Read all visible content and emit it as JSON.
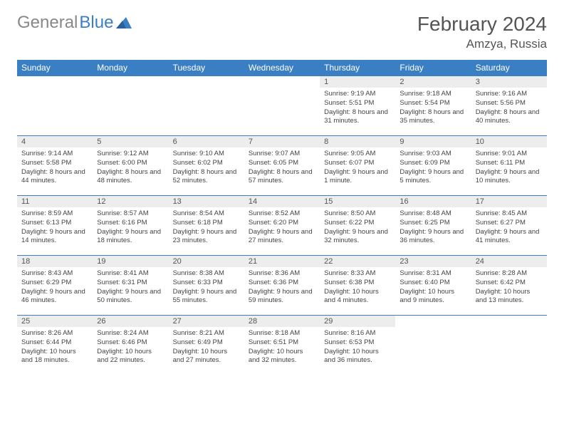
{
  "logo": {
    "gray": "General",
    "blue": "Blue"
  },
  "title": "February 2024",
  "subtitle": "Amzya, Russia",
  "colors": {
    "header_bg": "#3a7fc4",
    "daynum_bg": "#ededed",
    "border": "#3a7fc4",
    "text": "#444"
  },
  "weekdays": [
    "Sunday",
    "Monday",
    "Tuesday",
    "Wednesday",
    "Thursday",
    "Friday",
    "Saturday"
  ],
  "weeks": [
    [
      null,
      null,
      null,
      null,
      {
        "num": "1",
        "sunrise": "Sunrise: 9:19 AM",
        "sunset": "Sunset: 5:51 PM",
        "daylight": "Daylight: 8 hours and 31 minutes."
      },
      {
        "num": "2",
        "sunrise": "Sunrise: 9:18 AM",
        "sunset": "Sunset: 5:54 PM",
        "daylight": "Daylight: 8 hours and 35 minutes."
      },
      {
        "num": "3",
        "sunrise": "Sunrise: 9:16 AM",
        "sunset": "Sunset: 5:56 PM",
        "daylight": "Daylight: 8 hours and 40 minutes."
      }
    ],
    [
      {
        "num": "4",
        "sunrise": "Sunrise: 9:14 AM",
        "sunset": "Sunset: 5:58 PM",
        "daylight": "Daylight: 8 hours and 44 minutes."
      },
      {
        "num": "5",
        "sunrise": "Sunrise: 9:12 AM",
        "sunset": "Sunset: 6:00 PM",
        "daylight": "Daylight: 8 hours and 48 minutes."
      },
      {
        "num": "6",
        "sunrise": "Sunrise: 9:10 AM",
        "sunset": "Sunset: 6:02 PM",
        "daylight": "Daylight: 8 hours and 52 minutes."
      },
      {
        "num": "7",
        "sunrise": "Sunrise: 9:07 AM",
        "sunset": "Sunset: 6:05 PM",
        "daylight": "Daylight: 8 hours and 57 minutes."
      },
      {
        "num": "8",
        "sunrise": "Sunrise: 9:05 AM",
        "sunset": "Sunset: 6:07 PM",
        "daylight": "Daylight: 9 hours and 1 minute."
      },
      {
        "num": "9",
        "sunrise": "Sunrise: 9:03 AM",
        "sunset": "Sunset: 6:09 PM",
        "daylight": "Daylight: 9 hours and 5 minutes."
      },
      {
        "num": "10",
        "sunrise": "Sunrise: 9:01 AM",
        "sunset": "Sunset: 6:11 PM",
        "daylight": "Daylight: 9 hours and 10 minutes."
      }
    ],
    [
      {
        "num": "11",
        "sunrise": "Sunrise: 8:59 AM",
        "sunset": "Sunset: 6:13 PM",
        "daylight": "Daylight: 9 hours and 14 minutes."
      },
      {
        "num": "12",
        "sunrise": "Sunrise: 8:57 AM",
        "sunset": "Sunset: 6:16 PM",
        "daylight": "Daylight: 9 hours and 18 minutes."
      },
      {
        "num": "13",
        "sunrise": "Sunrise: 8:54 AM",
        "sunset": "Sunset: 6:18 PM",
        "daylight": "Daylight: 9 hours and 23 minutes."
      },
      {
        "num": "14",
        "sunrise": "Sunrise: 8:52 AM",
        "sunset": "Sunset: 6:20 PM",
        "daylight": "Daylight: 9 hours and 27 minutes."
      },
      {
        "num": "15",
        "sunrise": "Sunrise: 8:50 AM",
        "sunset": "Sunset: 6:22 PM",
        "daylight": "Daylight: 9 hours and 32 minutes."
      },
      {
        "num": "16",
        "sunrise": "Sunrise: 8:48 AM",
        "sunset": "Sunset: 6:25 PM",
        "daylight": "Daylight: 9 hours and 36 minutes."
      },
      {
        "num": "17",
        "sunrise": "Sunrise: 8:45 AM",
        "sunset": "Sunset: 6:27 PM",
        "daylight": "Daylight: 9 hours and 41 minutes."
      }
    ],
    [
      {
        "num": "18",
        "sunrise": "Sunrise: 8:43 AM",
        "sunset": "Sunset: 6:29 PM",
        "daylight": "Daylight: 9 hours and 46 minutes."
      },
      {
        "num": "19",
        "sunrise": "Sunrise: 8:41 AM",
        "sunset": "Sunset: 6:31 PM",
        "daylight": "Daylight: 9 hours and 50 minutes."
      },
      {
        "num": "20",
        "sunrise": "Sunrise: 8:38 AM",
        "sunset": "Sunset: 6:33 PM",
        "daylight": "Daylight: 9 hours and 55 minutes."
      },
      {
        "num": "21",
        "sunrise": "Sunrise: 8:36 AM",
        "sunset": "Sunset: 6:36 PM",
        "daylight": "Daylight: 9 hours and 59 minutes."
      },
      {
        "num": "22",
        "sunrise": "Sunrise: 8:33 AM",
        "sunset": "Sunset: 6:38 PM",
        "daylight": "Daylight: 10 hours and 4 minutes."
      },
      {
        "num": "23",
        "sunrise": "Sunrise: 8:31 AM",
        "sunset": "Sunset: 6:40 PM",
        "daylight": "Daylight: 10 hours and 9 minutes."
      },
      {
        "num": "24",
        "sunrise": "Sunrise: 8:28 AM",
        "sunset": "Sunset: 6:42 PM",
        "daylight": "Daylight: 10 hours and 13 minutes."
      }
    ],
    [
      {
        "num": "25",
        "sunrise": "Sunrise: 8:26 AM",
        "sunset": "Sunset: 6:44 PM",
        "daylight": "Daylight: 10 hours and 18 minutes."
      },
      {
        "num": "26",
        "sunrise": "Sunrise: 8:24 AM",
        "sunset": "Sunset: 6:46 PM",
        "daylight": "Daylight: 10 hours and 22 minutes."
      },
      {
        "num": "27",
        "sunrise": "Sunrise: 8:21 AM",
        "sunset": "Sunset: 6:49 PM",
        "daylight": "Daylight: 10 hours and 27 minutes."
      },
      {
        "num": "28",
        "sunrise": "Sunrise: 8:18 AM",
        "sunset": "Sunset: 6:51 PM",
        "daylight": "Daylight: 10 hours and 32 minutes."
      },
      {
        "num": "29",
        "sunrise": "Sunrise: 8:16 AM",
        "sunset": "Sunset: 6:53 PM",
        "daylight": "Daylight: 10 hours and 36 minutes."
      },
      null,
      null
    ]
  ]
}
